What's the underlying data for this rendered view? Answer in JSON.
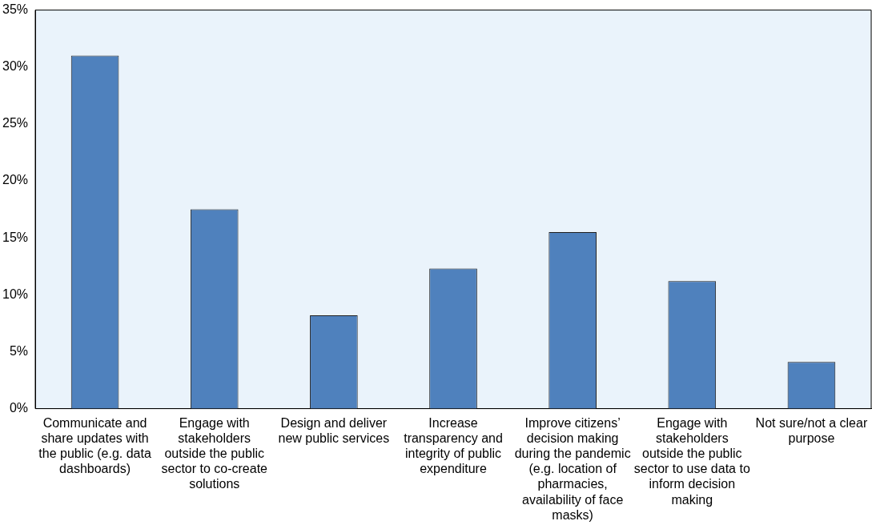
{
  "chart_data": {
    "type": "bar",
    "categories": [
      "Communicate and share updates with the public (e.g. data dashboards)",
      "Engage with stakeholders outside the public sector to co-create solutions",
      "Design and deliver new public services",
      "Increase transparency and integrity of public expenditure",
      "Improve citizens’ decision making during the pandemic (e.g. location of pharmacies, availability of face masks)",
      "Engage with stakeholders outside the public sector to use data to inform decision making",
      "Not sure/not a clear purpose"
    ],
    "values": [
      31,
      17.5,
      8.2,
      12.3,
      15.5,
      11.2,
      4.1
    ],
    "color": "#4f81bd",
    "ylim": [
      0,
      35
    ],
    "yticks": [
      {
        "value": 0,
        "label": "0%"
      },
      {
        "value": 5,
        "label": "5%"
      },
      {
        "value": 10,
        "label": "10%"
      },
      {
        "value": 15,
        "label": "15%"
      },
      {
        "value": 20,
        "label": "20%"
      },
      {
        "value": 25,
        "label": "25%"
      },
      {
        "value": 30,
        "label": "30%"
      },
      {
        "value": 35,
        "label": "35%"
      }
    ],
    "grid": false,
    "legend": false
  }
}
